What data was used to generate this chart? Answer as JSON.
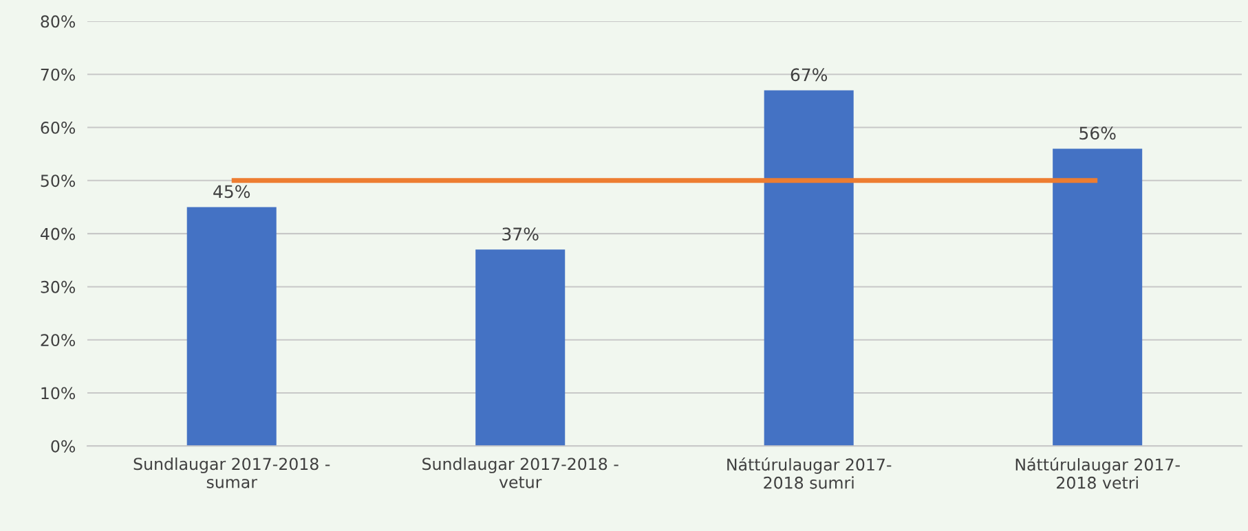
{
  "chart_data": {
    "type": "bar",
    "categories": [
      "Sundlaugar 2017-2018 -\nsumar",
      "Sundlaugar 2017-2018 -\nvetur",
      "Náttúrulaugar 2017-\n2018 sumri",
      "Náttúrulaugar 2017-\n2018 vetri"
    ],
    "series": [
      {
        "color": "#4472c4",
        "values": [
          45,
          37,
          67,
          56
        ],
        "value_labels": [
          "45%",
          "37%",
          "67%",
          "56%"
        ]
      },
      {
        "type": "line",
        "color": "#ed7d31",
        "values": [
          50,
          50,
          50,
          50
        ]
      }
    ],
    "ylim": [
      0,
      80
    ],
    "yticks": [
      {
        "value": 0,
        "label": "0%"
      },
      {
        "value": 10,
        "label": "10%"
      },
      {
        "value": 20,
        "label": "20%"
      },
      {
        "value": 30,
        "label": "30%"
      },
      {
        "value": 40,
        "label": "40%"
      },
      {
        "value": 50,
        "label": "50%"
      },
      {
        "value": 60,
        "label": "60%"
      },
      {
        "value": 70,
        "label": "70%"
      },
      {
        "value": 80,
        "label": "80%"
      }
    ],
    "grid": "y"
  }
}
